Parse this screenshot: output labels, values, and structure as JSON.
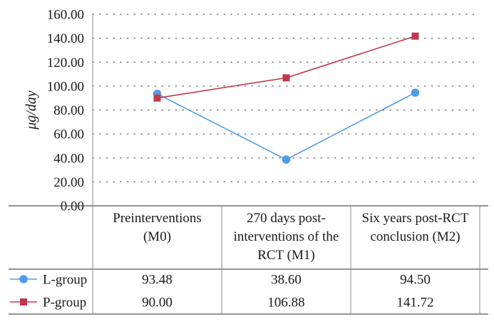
{
  "chart_data": {
    "type": "line",
    "title": "",
    "xlabel": "",
    "ylabel": "μg/day",
    "ylim": [
      0,
      160
    ],
    "yticks": [
      "0.00",
      "20.00",
      "40.00",
      "60.00",
      "80.00",
      "100.00",
      "120.00",
      "140.00",
      "160.00"
    ],
    "grid": "dotted horizontal",
    "categories": [
      [
        "Preinterventions",
        "(M0)"
      ],
      [
        "270 days post-",
        "interventions of the",
        "RCT (M1)"
      ],
      [
        "Six years post-RCT",
        "conclusion (M2)"
      ]
    ],
    "series": [
      {
        "name": "L-group",
        "marker": "circle",
        "color": "#4f9de8",
        "values": [
          93.48,
          38.6,
          94.5
        ],
        "labels": [
          "93.48",
          "38.60",
          "94.50"
        ]
      },
      {
        "name": "P-group",
        "marker": "square",
        "color": "#c0384f",
        "values": [
          90.0,
          106.88,
          141.72
        ],
        "labels": [
          "90.00",
          "106.88",
          "141.72"
        ]
      }
    ]
  }
}
